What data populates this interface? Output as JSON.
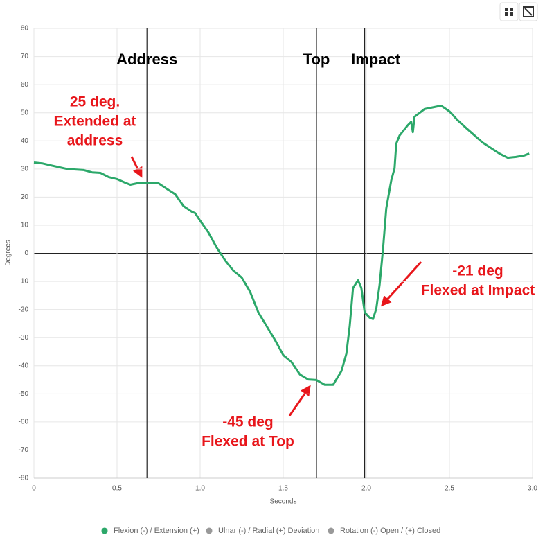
{
  "chart_data": {
    "type": "line",
    "x_label": "Seconds",
    "y_label": "Degrees",
    "xlim": [
      0,
      3
    ],
    "ylim": [
      -80,
      80
    ],
    "xticks": [
      0,
      0.5,
      {
        "value": 1,
        "label": "1.0"
      },
      1.5,
      {
        "value": 2,
        "label": "2.0"
      },
      2.5,
      {
        "value": 3,
        "label": "3.0"
      }
    ],
    "yticks": [
      -80,
      -70,
      -60,
      -50,
      -40,
      -30,
      -20,
      -10,
      0,
      10,
      20,
      30,
      40,
      50,
      60,
      70,
      80
    ],
    "grid": true,
    "series": [
      {
        "name": "Flexion (-) / Extension (+)",
        "color": "#2ca86a",
        "x": [
          0,
          0.05,
          0.1,
          0.2,
          0.25,
          0.3,
          0.35,
          0.4,
          0.45,
          0.5,
          0.55,
          0.58,
          0.62,
          0.68,
          0.75,
          0.8,
          0.85,
          0.88,
          0.9,
          0.95,
          0.97,
          1.0,
          1.05,
          1.1,
          1.15,
          1.2,
          1.25,
          1.3,
          1.35,
          1.4,
          1.45,
          1.5,
          1.55,
          1.6,
          1.65,
          1.7,
          1.75,
          1.8,
          1.85,
          1.88,
          1.9,
          1.92,
          1.95,
          1.97,
          1.99,
          2.02,
          2.04,
          2.06,
          2.08,
          2.1,
          2.12,
          2.15,
          2.17,
          2.18,
          2.2,
          2.25,
          2.27,
          2.28,
          2.29,
          2.35,
          2.45,
          2.5,
          2.55,
          2.6,
          2.7,
          2.8,
          2.85,
          2.9,
          2.95,
          2.98
        ],
        "values": [
          32.3,
          32,
          31.3,
          30,
          29.8,
          29.6,
          28.8,
          28.6,
          27.1,
          26.4,
          25.1,
          24.4,
          24.9,
          25.1,
          24.9,
          22.9,
          21,
          18.5,
          16.8,
          14.8,
          14.3,
          11.6,
          7.4,
          2,
          -2.5,
          -6.2,
          -8.6,
          -13.6,
          -21,
          -25.9,
          -30.8,
          -36.2,
          -38.7,
          -43.1,
          -44.9,
          -45.1,
          -46.8,
          -46.8,
          -41.9,
          -35.7,
          -25.9,
          -12.3,
          -9.6,
          -12.3,
          -21,
          -22.9,
          -23.4,
          -19.7,
          -11.1,
          1.2,
          16,
          25.9,
          30.3,
          39,
          41.9,
          45.6,
          46.8,
          43.1,
          48.6,
          51.3,
          52.5,
          50.5,
          47.3,
          44.6,
          39.4,
          35.5,
          34,
          34.3,
          34.8,
          35.5
        ]
      }
    ],
    "hidden_series": [
      {
        "name": "Ulnar (-) / Radial (+) Deviation",
        "color": "#999999"
      },
      {
        "name": "Rotation (-) Open / (+) Closed",
        "color": "#999999"
      }
    ],
    "markers": [
      {
        "label": "Address",
        "x": 0.68
      },
      {
        "label": "Top",
        "x": 1.7
      },
      {
        "label": "Impact",
        "x": 1.99
      }
    ],
    "annotations": [
      {
        "lines": [
          "25 deg.",
          "Extended at",
          "address"
        ],
        "color": "#e8161b"
      },
      {
        "lines": [
          "-45 deg",
          "Flexed at Top"
        ],
        "color": "#e8161b"
      },
      {
        "lines": [
          "-21 deg",
          "Flexed at Impact"
        ],
        "color": "#e8161b"
      }
    ]
  }
}
